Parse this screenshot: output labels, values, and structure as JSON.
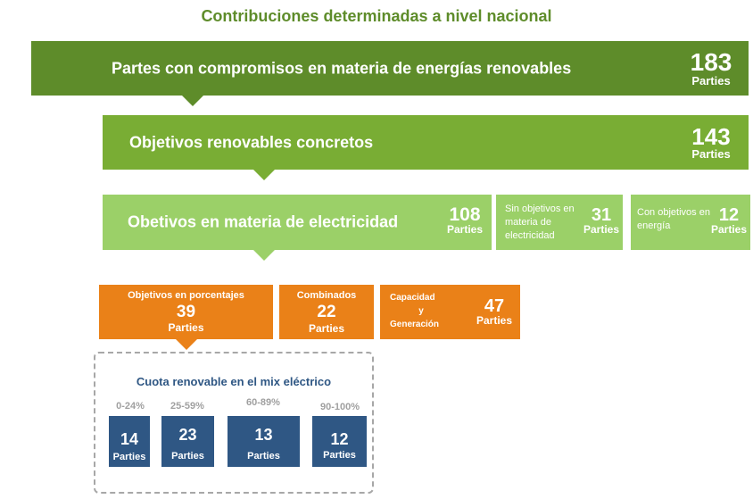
{
  "title": "Contribuciones determinadas a nivel nacional",
  "colors": {
    "dark_green": "#5e8c2a",
    "mid_green": "#79ad34",
    "light_green": "#9bd068",
    "orange": "#ea8118",
    "blue": "#2f5784",
    "grey_text": "#a0a0a0"
  },
  "level1": {
    "label": "Partes con compromisos en materia de energías renovables",
    "value": "183",
    "unit": "Parties"
  },
  "level2": {
    "label": "Objetivos renovables concretos",
    "value": "143",
    "unit": "Parties"
  },
  "level3": {
    "electricity": {
      "label": "Obetivos en materia de electricidad",
      "value": "108",
      "unit": "Parties"
    },
    "no_electricity": {
      "label": "Sin objetivos en materia de electricidad",
      "value": "31",
      "unit": "Parties"
    },
    "energy": {
      "label": "Con objetivos en energía",
      "value": "12",
      "unit": "Parties"
    }
  },
  "level4": {
    "percent": {
      "label": "Objetivos en porcentajes",
      "value": "39",
      "unit": "Parties"
    },
    "combined": {
      "label": "Combinados",
      "value": "22",
      "unit": "Parties"
    },
    "capacity": {
      "label_line1": "Capacidad",
      "label_line2": "y",
      "label_line3": "Generación",
      "value": "47",
      "unit": "Parties"
    }
  },
  "share": {
    "title": "Cuota renovable en el mix eléctrico",
    "items": [
      {
        "range": "0-24%",
        "value": "14",
        "unit": "Parties"
      },
      {
        "range": "25-59%",
        "value": "23",
        "unit": "Parties"
      },
      {
        "range": "60-89%",
        "value": "13",
        "unit": "Parties"
      },
      {
        "range": "90-100%",
        "value": "12",
        "unit": "Parties"
      }
    ]
  }
}
